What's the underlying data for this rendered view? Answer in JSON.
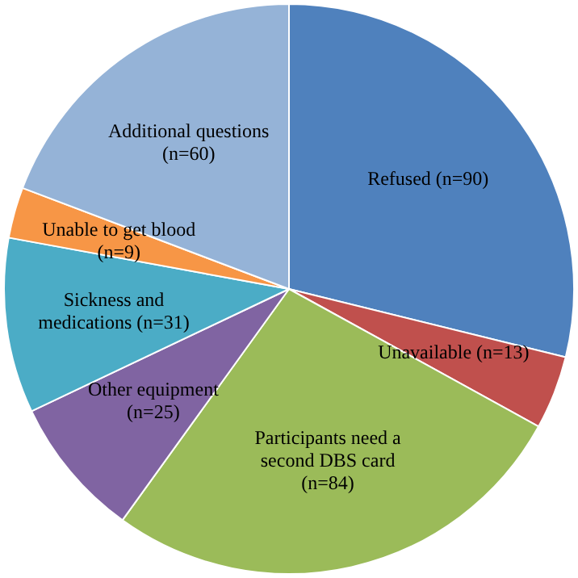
{
  "chart_data": {
    "type": "pie",
    "categories": [
      "Refused (n=90)",
      "Unavailable (n=13)",
      "Participants need a second DBS card (n=84)",
      "Other equipment (n=25)",
      "Sickness and medications (n=31)",
      "Unable to get blood (n=9)",
      "Additional questions (n=60)"
    ],
    "values": [
      90,
      13,
      84,
      25,
      31,
      9,
      60
    ],
    "colors": [
      "#4f81bd",
      "#c0504d",
      "#9bbb59",
      "#8064a2",
      "#4bacc6",
      "#f79646",
      "#95b3d7"
    ],
    "legend": false
  }
}
